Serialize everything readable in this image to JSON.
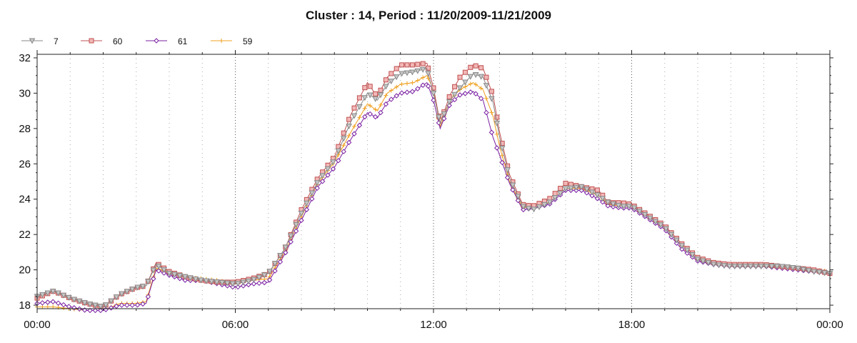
{
  "chart_data": {
    "type": "line",
    "title": "Cluster : 14, Period : 11/20/2009-11/21/2009",
    "xlabel": "",
    "ylabel": "",
    "x_ticks": [
      "00:00",
      "06:00",
      "12:00",
      "18:00",
      "00:00"
    ],
    "xlim_hours": [
      0,
      24
    ],
    "ylim": [
      17.8,
      32.2
    ],
    "y_ticks": [
      18,
      20,
      22,
      24,
      26,
      28,
      30,
      32
    ],
    "grid": true,
    "legend_position": "top-left",
    "series": [
      {
        "name": "7",
        "color": "#888888",
        "marker": "triangle-down",
        "points": [
          [
            0,
            18.5
          ],
          [
            0.5,
            18.8
          ],
          [
            1,
            18.4
          ],
          [
            1.5,
            18.1
          ],
          [
            2,
            17.9
          ],
          [
            2.5,
            18.6
          ],
          [
            3,
            19.0
          ],
          [
            3.3,
            19.1
          ],
          [
            3.6,
            20.3
          ],
          [
            4,
            19.8
          ],
          [
            4.5,
            19.6
          ],
          [
            5,
            19.4
          ],
          [
            5.5,
            19.3
          ],
          [
            6,
            19.2
          ],
          [
            6.5,
            19.4
          ],
          [
            7,
            19.8
          ],
          [
            7.5,
            21.2
          ],
          [
            8,
            23.2
          ],
          [
            8.5,
            25.0
          ],
          [
            9,
            26.2
          ],
          [
            9.5,
            28.4
          ],
          [
            10,
            30.0
          ],
          [
            10.3,
            29.6
          ],
          [
            10.6,
            30.5
          ],
          [
            11,
            31.1
          ],
          [
            11.4,
            31.2
          ],
          [
            11.8,
            31.4
          ],
          [
            12,
            30.0
          ],
          [
            12.2,
            28.3
          ],
          [
            12.5,
            29.6
          ],
          [
            12.8,
            30.3
          ],
          [
            13.2,
            31.1
          ],
          [
            13.5,
            30.9
          ],
          [
            13.8,
            29.5
          ],
          [
            14,
            27.5
          ],
          [
            14.3,
            25.2
          ],
          [
            14.7,
            23.6
          ],
          [
            15,
            23.4
          ],
          [
            15.5,
            23.8
          ],
          [
            16,
            24.6
          ],
          [
            16.5,
            24.7
          ],
          [
            17,
            24.2
          ],
          [
            17.3,
            23.8
          ],
          [
            17.7,
            23.6
          ],
          [
            18,
            23.6
          ],
          [
            18.5,
            23.0
          ],
          [
            19,
            22.4
          ],
          [
            19.5,
            21.4
          ],
          [
            20,
            20.6
          ],
          [
            20.5,
            20.3
          ],
          [
            21,
            20.2
          ],
          [
            21.5,
            20.2
          ],
          [
            22,
            20.2
          ],
          [
            22.5,
            20.2
          ],
          [
            23,
            20.1
          ],
          [
            23.5,
            19.9
          ],
          [
            24,
            19.8
          ]
        ]
      },
      {
        "name": "60",
        "color": "#c05050",
        "marker": "square",
        "points": [
          [
            0,
            18.4
          ],
          [
            0.5,
            18.8
          ],
          [
            1,
            18.4
          ],
          [
            1.5,
            18.1
          ],
          [
            2,
            17.9
          ],
          [
            2.5,
            18.6
          ],
          [
            3,
            19.0
          ],
          [
            3.3,
            19.1
          ],
          [
            3.6,
            20.4
          ],
          [
            4,
            19.9
          ],
          [
            4.5,
            19.6
          ],
          [
            5,
            19.4
          ],
          [
            5.5,
            19.3
          ],
          [
            6,
            19.3
          ],
          [
            6.5,
            19.5
          ],
          [
            7,
            19.8
          ],
          [
            7.5,
            21.2
          ],
          [
            8,
            23.4
          ],
          [
            8.5,
            25.2
          ],
          [
            9,
            26.4
          ],
          [
            9.5,
            28.8
          ],
          [
            10,
            30.6
          ],
          [
            10.3,
            29.8
          ],
          [
            10.6,
            30.9
          ],
          [
            11,
            31.6
          ],
          [
            11.4,
            31.6
          ],
          [
            11.8,
            31.7
          ],
          [
            12,
            30.3
          ],
          [
            12.2,
            28.3
          ],
          [
            12.5,
            29.9
          ],
          [
            12.8,
            30.9
          ],
          [
            13.2,
            31.6
          ],
          [
            13.5,
            31.4
          ],
          [
            13.8,
            29.9
          ],
          [
            14,
            27.8
          ],
          [
            14.3,
            25.4
          ],
          [
            14.7,
            23.7
          ],
          [
            15,
            23.6
          ],
          [
            15.5,
            24.0
          ],
          [
            16,
            24.9
          ],
          [
            16.5,
            24.7
          ],
          [
            17,
            24.5
          ],
          [
            17.3,
            23.8
          ],
          [
            17.7,
            23.8
          ],
          [
            18,
            23.7
          ],
          [
            18.5,
            23.1
          ],
          [
            19,
            22.5
          ],
          [
            19.5,
            21.5
          ],
          [
            20,
            20.7
          ],
          [
            20.5,
            20.4
          ],
          [
            21,
            20.3
          ],
          [
            21.5,
            20.3
          ],
          [
            22,
            20.3
          ],
          [
            22.5,
            20.2
          ],
          [
            23,
            20.1
          ],
          [
            23.5,
            20.0
          ],
          [
            24,
            19.8
          ]
        ]
      },
      {
        "name": "61",
        "color": "#7a1fa2",
        "marker": "diamond",
        "points": [
          [
            0,
            18.1
          ],
          [
            0.5,
            18.2
          ],
          [
            1,
            17.9
          ],
          [
            1.5,
            17.7
          ],
          [
            2,
            17.7
          ],
          [
            2.5,
            18.0
          ],
          [
            3,
            18.0
          ],
          [
            3.3,
            18.1
          ],
          [
            3.6,
            20.0
          ],
          [
            4,
            19.7
          ],
          [
            4.5,
            19.4
          ],
          [
            5,
            19.4
          ],
          [
            5.5,
            19.2
          ],
          [
            6,
            19.0
          ],
          [
            6.5,
            19.2
          ],
          [
            7,
            19.3
          ],
          [
            7.5,
            20.9
          ],
          [
            8,
            22.8
          ],
          [
            8.5,
            24.7
          ],
          [
            9,
            25.8
          ],
          [
            9.5,
            27.4
          ],
          [
            10,
            28.9
          ],
          [
            10.3,
            28.6
          ],
          [
            10.6,
            29.5
          ],
          [
            11,
            30.0
          ],
          [
            11.4,
            30.1
          ],
          [
            11.8,
            30.6
          ],
          [
            12,
            29.6
          ],
          [
            12.2,
            28.0
          ],
          [
            12.5,
            29.4
          ],
          [
            12.8,
            29.9
          ],
          [
            13.2,
            30.1
          ],
          [
            13.5,
            29.6
          ],
          [
            13.8,
            27.5
          ],
          [
            14,
            26.5
          ],
          [
            14.3,
            24.9
          ],
          [
            14.7,
            23.4
          ],
          [
            15,
            23.5
          ],
          [
            15.5,
            23.7
          ],
          [
            16,
            24.5
          ],
          [
            16.5,
            24.5
          ],
          [
            17,
            24.0
          ],
          [
            17.3,
            23.6
          ],
          [
            17.7,
            23.5
          ],
          [
            18,
            23.5
          ],
          [
            18.5,
            22.9
          ],
          [
            19,
            22.3
          ],
          [
            19.5,
            21.2
          ],
          [
            20,
            20.5
          ],
          [
            20.5,
            20.3
          ],
          [
            21,
            20.2
          ],
          [
            21.5,
            20.2
          ],
          [
            22,
            20.2
          ],
          [
            22.5,
            20.1
          ],
          [
            23,
            20.0
          ],
          [
            23.5,
            19.9
          ],
          [
            24,
            19.8
          ]
        ]
      },
      {
        "name": "59",
        "color": "#f0a020",
        "marker": "plus",
        "points": [
          [
            0,
            17.9
          ],
          [
            0.5,
            17.9
          ],
          [
            1,
            17.8
          ],
          [
            1.5,
            17.7
          ],
          [
            2,
            17.7
          ],
          [
            2.5,
            18.1
          ],
          [
            3,
            18.1
          ],
          [
            3.3,
            18.2
          ],
          [
            3.6,
            20.1
          ],
          [
            4,
            19.8
          ],
          [
            4.5,
            19.6
          ],
          [
            5,
            19.5
          ],
          [
            5.5,
            19.4
          ],
          [
            6,
            19.2
          ],
          [
            6.5,
            19.4
          ],
          [
            7,
            19.5
          ],
          [
            7.5,
            21.0
          ],
          [
            8,
            23.0
          ],
          [
            8.5,
            24.9
          ],
          [
            9,
            26.1
          ],
          [
            9.5,
            27.8
          ],
          [
            10,
            29.4
          ],
          [
            10.3,
            29.0
          ],
          [
            10.6,
            30.0
          ],
          [
            11,
            30.5
          ],
          [
            11.4,
            30.6
          ],
          [
            11.8,
            31.0
          ],
          [
            12,
            30.2
          ],
          [
            12.2,
            28.1
          ],
          [
            12.5,
            29.6
          ],
          [
            12.8,
            30.2
          ],
          [
            13.2,
            30.6
          ],
          [
            13.5,
            30.2
          ],
          [
            13.8,
            28.7
          ],
          [
            14,
            27.0
          ],
          [
            14.3,
            25.0
          ],
          [
            14.7,
            23.5
          ],
          [
            15,
            23.6
          ],
          [
            15.5,
            23.8
          ],
          [
            16,
            24.6
          ],
          [
            16.5,
            24.6
          ],
          [
            17,
            24.2
          ],
          [
            17.3,
            23.7
          ],
          [
            17.7,
            23.6
          ],
          [
            18,
            23.6
          ],
          [
            18.5,
            23.0
          ],
          [
            19,
            22.4
          ],
          [
            19.5,
            21.4
          ],
          [
            20,
            20.6
          ],
          [
            20.5,
            20.4
          ],
          [
            21,
            20.3
          ],
          [
            21.5,
            20.3
          ],
          [
            22,
            20.3
          ],
          [
            22.5,
            20.2
          ],
          [
            23,
            20.1
          ],
          [
            23.5,
            20.0
          ],
          [
            24,
            19.9
          ]
        ]
      }
    ]
  }
}
